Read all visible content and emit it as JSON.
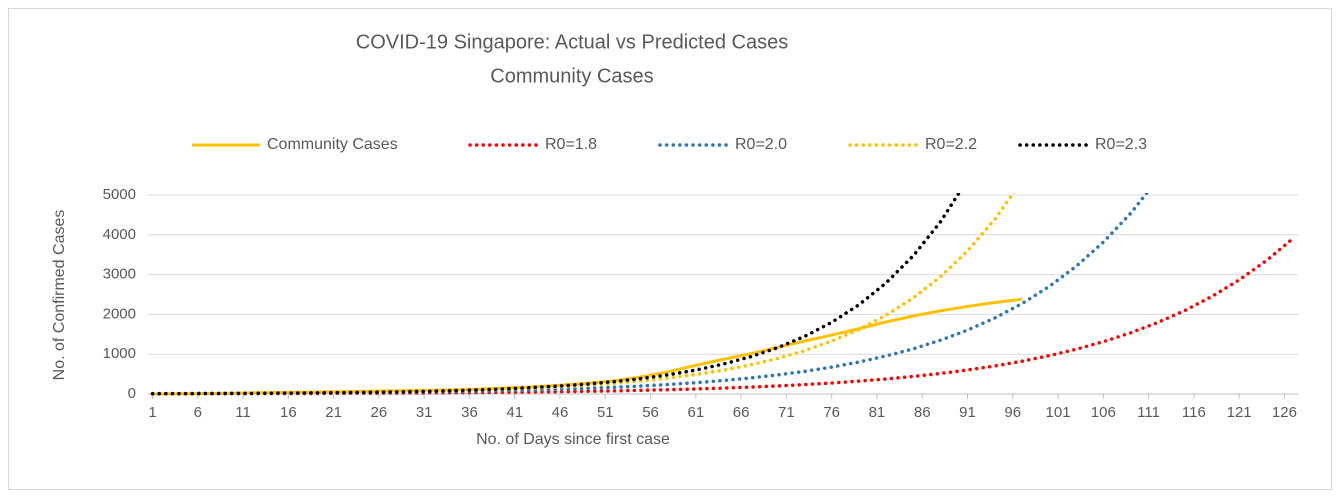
{
  "chart_data": {
    "type": "line",
    "title": "COVID-19 Singapore: Actual vs Predicted Cases",
    "subtitle": "Community Cases",
    "x_label": "No. of Days since first case",
    "y_label": "No. of Confirmed Cases",
    "x": [
      1,
      4,
      7,
      10,
      13,
      16,
      19,
      22,
      25,
      28,
      31,
      34,
      37,
      40,
      43,
      46,
      49,
      52,
      55,
      58,
      61,
      64,
      67,
      70,
      73,
      76,
      79,
      82,
      85,
      88,
      91,
      94,
      97,
      100,
      103,
      106,
      109,
      112,
      115,
      118,
      121,
      124,
      127
    ],
    "series": [
      {
        "name": "Community Cases",
        "color": "#ffc000",
        "style": "solid",
        "values": [
          1,
          5,
          12,
          18,
          30,
          40,
          50,
          60,
          70,
          80,
          90,
          100,
          120,
          150,
          180,
          220,
          270,
          330,
          430,
          560,
          720,
          870,
          1010,
          1170,
          1330,
          1480,
          1640,
          1810,
          1960,
          2090,
          2200,
          2300,
          2380,
          null,
          null,
          null,
          null,
          null,
          null,
          null,
          null,
          null,
          null
        ]
      },
      {
        "name": "R0=1.8",
        "color": "#ff0000",
        "style": "dotted",
        "values": [
          5.6,
          6.5,
          7.6,
          8.9,
          10.4,
          12.2,
          14.3,
          16.7,
          19.5,
          22.8,
          26.6,
          31.1,
          36.4,
          42.5,
          49.7,
          58.1,
          67.9,
          79.4,
          92.8,
          108,
          127,
          148,
          173,
          202,
          236,
          276,
          323,
          377,
          441,
          515,
          602,
          704,
          823,
          962,
          1124,
          1314,
          1536,
          1795,
          2098,
          2452,
          2866,
          3350,
          3915
        ]
      },
      {
        "name": "R0=2.0",
        "color": "#2e75b6",
        "style": "dotted",
        "values": [
          8.9,
          10.6,
          12.6,
          15.0,
          17.8,
          21.2,
          25.2,
          29.9,
          35.6,
          42.3,
          50.3,
          59.8,
          71.1,
          84.5,
          100,
          120,
          142,
          169,
          201,
          239,
          284,
          338,
          402,
          478,
          568,
          675,
          803,
          955,
          1135,
          1350,
          1605,
          1908,
          2269,
          2698,
          3208,
          3814,
          4535,
          5392,
          null,
          null,
          null,
          null,
          null
        ]
      },
      {
        "name": "R0=2.2",
        "color": "#ffc000",
        "style": "dotted",
        "values": [
          9.1,
          11.1,
          13.6,
          16.6,
          20.2,
          24.7,
          30.1,
          36.7,
          44.8,
          54.7,
          66.8,
          81.5,
          99.4,
          121,
          148,
          181,
          221,
          270,
          329,
          402,
          490,
          598,
          730,
          891,
          1087,
          1327,
          1619,
          1976,
          2412,
          2943,
          3592,
          4383,
          5349,
          null,
          null,
          null,
          null,
          null,
          null,
          null,
          null,
          null,
          null
        ]
      },
      {
        "name": "R0=2.3",
        "color": "#000000",
        "style": "dotted",
        "values": [
          7.5,
          9.4,
          11.7,
          14.6,
          18.1,
          22.5,
          28,
          35,
          43,
          54,
          67,
          84,
          104,
          130,
          162,
          201,
          251,
          312,
          388,
          484,
          602,
          750,
          933,
          1161,
          1446,
          1800,
          2240,
          2789,
          3471,
          4321,
          5379,
          null,
          null,
          null,
          null,
          null,
          null,
          null,
          null,
          null,
          null,
          null,
          null
        ]
      }
    ],
    "xlim": [
      0.5,
      127.5
    ],
    "xticks": [
      1,
      6,
      11,
      16,
      21,
      26,
      31,
      36,
      41,
      46,
      51,
      56,
      61,
      66,
      71,
      76,
      81,
      86,
      91,
      96,
      101,
      106,
      111,
      116,
      121,
      126
    ],
    "ylim": [
      0,
      5000
    ],
    "yticks": [
      0,
      1000,
      2000,
      3000,
      4000,
      5000
    ],
    "grid": true,
    "legend": "top"
  }
}
